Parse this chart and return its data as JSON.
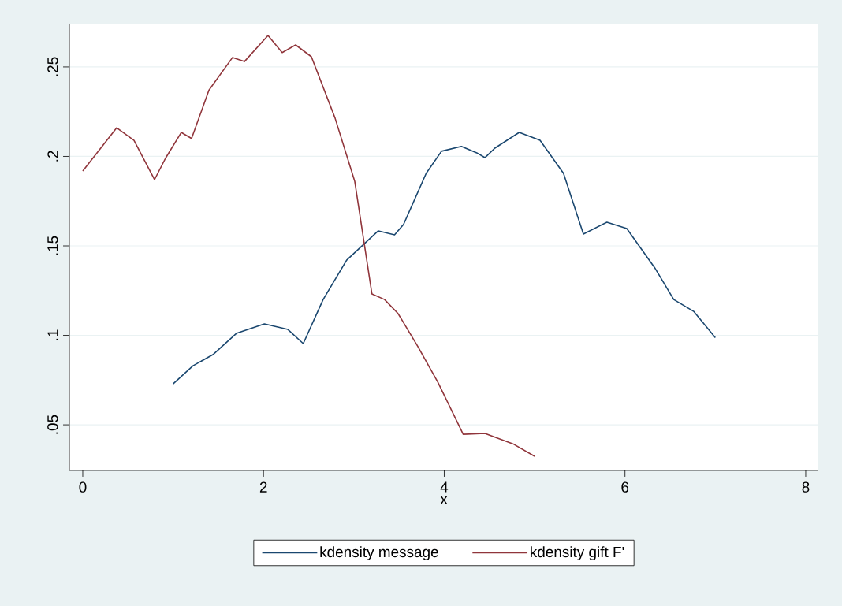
{
  "chart_data": {
    "type": "line",
    "xlabel": "x",
    "xlim": [
      -0.148,
      8.14
    ],
    "ylim": [
      0.0245,
      0.2742
    ],
    "xticks": [
      0,
      2,
      4,
      6,
      8
    ],
    "yticks": [
      {
        "value": 0.05,
        "label": ".05"
      },
      {
        "value": 0.1,
        "label": ".1"
      },
      {
        "value": 0.15,
        "label": ".15"
      },
      {
        "value": 0.2,
        "label": ".2"
      },
      {
        "value": 0.25,
        "label": ".25"
      }
    ],
    "grid": "y",
    "legend": "bottom",
    "marker": "none",
    "line_style": "solid",
    "series": [
      {
        "name": "kdensity message",
        "color": "#1a476f",
        "x": [
          1.0,
          1.22,
          1.44,
          1.7,
          2.01,
          2.27,
          2.44,
          2.66,
          2.92,
          3.27,
          3.45,
          3.55,
          3.8,
          3.97,
          4.19,
          4.36,
          4.45,
          4.56,
          4.83,
          5.06,
          5.32,
          5.54,
          5.8,
          6.02,
          6.33,
          6.54,
          6.76,
          7.0
        ],
        "values": [
          0.0729,
          0.083,
          0.0892,
          0.1011,
          0.1064,
          0.1033,
          0.0954,
          0.12,
          0.142,
          0.1584,
          0.1562,
          0.162,
          0.1905,
          0.2029,
          0.2056,
          0.202,
          0.1993,
          0.2046,
          0.2134,
          0.209,
          0.1905,
          0.1566,
          0.1632,
          0.1597,
          0.1377,
          0.12,
          0.1134,
          0.0987
        ]
      },
      {
        "name": "kdensity gift F'",
        "color": "#90353b",
        "x": [
          0,
          0.375,
          0.567,
          0.794,
          0.916,
          1.09,
          1.204,
          1.396,
          1.658,
          1.789,
          2.05,
          2.207,
          2.356,
          2.53,
          2.792,
          3.01,
          3.2,
          3.34,
          3.49,
          3.71,
          3.93,
          4.21,
          4.45,
          4.76,
          5.0
        ],
        "values": [
          0.1918,
          0.216,
          0.209,
          0.187,
          0.199,
          0.2134,
          0.21,
          0.237,
          0.2553,
          0.253,
          0.2676,
          0.258,
          0.2623,
          0.2557,
          0.2214,
          0.186,
          0.1231,
          0.12,
          0.1121,
          0.0936,
          0.0738,
          0.0447,
          0.0452,
          0.0394,
          0.0324
        ]
      }
    ]
  }
}
